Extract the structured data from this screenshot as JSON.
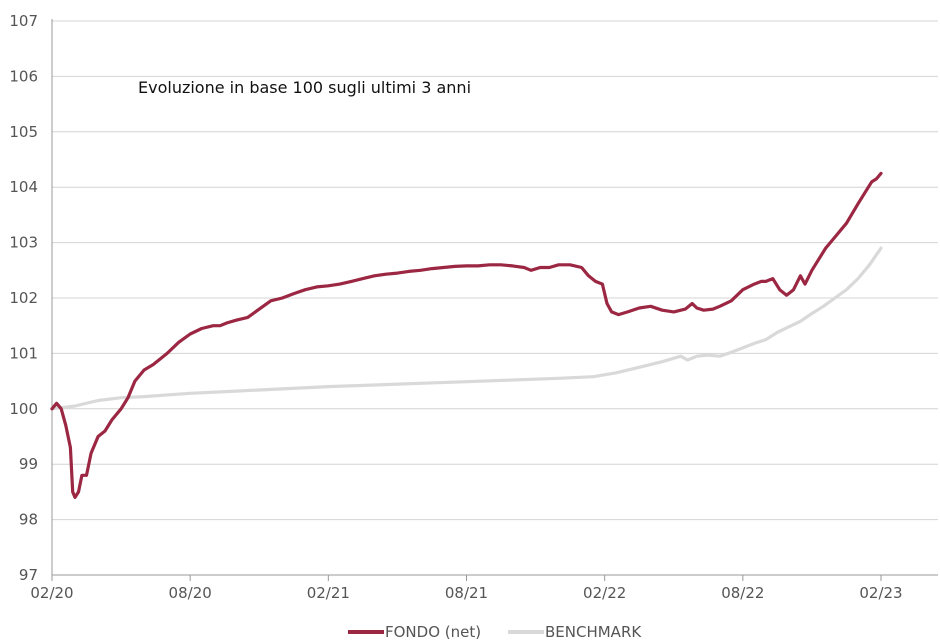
{
  "chart_data": {
    "type": "line",
    "title": "",
    "annotation": "Evoluzione in base 100 sugli ultimi 3 anni",
    "xlabel": "",
    "ylabel": "",
    "ylim": [
      97,
      107
    ],
    "yticks": [
      97,
      98,
      99,
      100,
      101,
      102,
      103,
      104,
      105,
      106,
      107
    ],
    "xlim": [
      0,
      36
    ],
    "xticks": [
      {
        "x": 0,
        "label": "02/20"
      },
      {
        "x": 6,
        "label": "08/20"
      },
      {
        "x": 12,
        "label": "02/21"
      },
      {
        "x": 18,
        "label": "08/21"
      },
      {
        "x": 24,
        "label": "02/22"
      },
      {
        "x": 30,
        "label": "08/22"
      },
      {
        "x": 36,
        "label": "02/23"
      }
    ],
    "grid": "horizontal",
    "legend": "bottom-center",
    "series": [
      {
        "name": "FONDO (net)",
        "color": "#9b2743",
        "points": [
          [
            0,
            100.0
          ],
          [
            0.2,
            100.1
          ],
          [
            0.4,
            100.0
          ],
          [
            0.6,
            99.7
          ],
          [
            0.8,
            99.3
          ],
          [
            0.9,
            98.5
          ],
          [
            1.0,
            98.4
          ],
          [
            1.15,
            98.5
          ],
          [
            1.3,
            98.8
          ],
          [
            1.5,
            98.8
          ],
          [
            1.7,
            99.2
          ],
          [
            2.0,
            99.5
          ],
          [
            2.3,
            99.6
          ],
          [
            2.6,
            99.8
          ],
          [
            3.0,
            100.0
          ],
          [
            3.3,
            100.2
          ],
          [
            3.6,
            100.5
          ],
          [
            4.0,
            100.7
          ],
          [
            4.4,
            100.8
          ],
          [
            5.0,
            101.0
          ],
          [
            5.5,
            101.2
          ],
          [
            6.0,
            101.35
          ],
          [
            6.5,
            101.45
          ],
          [
            7.0,
            101.5
          ],
          [
            7.3,
            101.5
          ],
          [
            7.6,
            101.55
          ],
          [
            8.0,
            101.6
          ],
          [
            8.5,
            101.65
          ],
          [
            9.0,
            101.8
          ],
          [
            9.5,
            101.95
          ],
          [
            10.0,
            102.0
          ],
          [
            10.5,
            102.08
          ],
          [
            11.0,
            102.15
          ],
          [
            11.5,
            102.2
          ],
          [
            12.0,
            102.22
          ],
          [
            12.5,
            102.25
          ],
          [
            13.0,
            102.3
          ],
          [
            13.5,
            102.35
          ],
          [
            14.0,
            102.4
          ],
          [
            14.5,
            102.43
          ],
          [
            15.0,
            102.45
          ],
          [
            15.5,
            102.48
          ],
          [
            16.0,
            102.5
          ],
          [
            16.5,
            102.53
          ],
          [
            17.0,
            102.55
          ],
          [
            17.5,
            102.57
          ],
          [
            18.0,
            102.58
          ],
          [
            18.5,
            102.58
          ],
          [
            19.0,
            102.6
          ],
          [
            19.5,
            102.6
          ],
          [
            20.0,
            102.58
          ],
          [
            20.5,
            102.55
          ],
          [
            20.8,
            102.5
          ],
          [
            21.2,
            102.55
          ],
          [
            21.6,
            102.55
          ],
          [
            22.0,
            102.6
          ],
          [
            22.5,
            102.6
          ],
          [
            23.0,
            102.55
          ],
          [
            23.3,
            102.4
          ],
          [
            23.6,
            102.3
          ],
          [
            23.9,
            102.25
          ],
          [
            24.1,
            101.9
          ],
          [
            24.3,
            101.75
          ],
          [
            24.6,
            101.7
          ],
          [
            25.0,
            101.75
          ],
          [
            25.5,
            101.82
          ],
          [
            26.0,
            101.85
          ],
          [
            26.5,
            101.78
          ],
          [
            27.0,
            101.75
          ],
          [
            27.5,
            101.8
          ],
          [
            27.8,
            101.9
          ],
          [
            28.0,
            101.82
          ],
          [
            28.3,
            101.78
          ],
          [
            28.7,
            101.8
          ],
          [
            29.0,
            101.85
          ],
          [
            29.5,
            101.95
          ],
          [
            30.0,
            102.15
          ],
          [
            30.5,
            102.25
          ],
          [
            30.8,
            102.3
          ],
          [
            31.0,
            102.3
          ],
          [
            31.3,
            102.35
          ],
          [
            31.6,
            102.15
          ],
          [
            31.9,
            102.05
          ],
          [
            32.2,
            102.15
          ],
          [
            32.5,
            102.4
          ],
          [
            32.7,
            102.25
          ],
          [
            33.0,
            102.5
          ],
          [
            33.3,
            102.7
          ],
          [
            33.6,
            102.9
          ],
          [
            34.0,
            103.1
          ],
          [
            34.5,
            103.35
          ],
          [
            35.0,
            103.7
          ],
          [
            35.3,
            103.9
          ],
          [
            35.6,
            104.1
          ],
          [
            35.8,
            104.15
          ],
          [
            36.0,
            104.25
          ]
        ]
      },
      {
        "name": "BENCHMARK",
        "color": "#d9d9d9",
        "points": [
          [
            0,
            100.0
          ],
          [
            1.0,
            100.05
          ],
          [
            2.0,
            100.15
          ],
          [
            3.0,
            100.2
          ],
          [
            4.0,
            100.22
          ],
          [
            6.0,
            100.28
          ],
          [
            8.0,
            100.32
          ],
          [
            10.0,
            100.36
          ],
          [
            12.0,
            100.4
          ],
          [
            14.0,
            100.43
          ],
          [
            16.0,
            100.46
          ],
          [
            18.0,
            100.49
          ],
          [
            20.0,
            100.52
          ],
          [
            22.0,
            100.55
          ],
          [
            23.5,
            100.58
          ],
          [
            24.5,
            100.65
          ],
          [
            25.5,
            100.75
          ],
          [
            26.5,
            100.85
          ],
          [
            27.3,
            100.95
          ],
          [
            27.6,
            100.88
          ],
          [
            28.0,
            100.95
          ],
          [
            28.5,
            100.97
          ],
          [
            29.0,
            100.95
          ],
          [
            29.5,
            101.02
          ],
          [
            30.0,
            101.1
          ],
          [
            30.5,
            101.18
          ],
          [
            31.0,
            101.25
          ],
          [
            31.5,
            101.38
          ],
          [
            32.0,
            101.48
          ],
          [
            32.5,
            101.58
          ],
          [
            33.0,
            101.72
          ],
          [
            33.5,
            101.85
          ],
          [
            34.0,
            102.0
          ],
          [
            34.5,
            102.15
          ],
          [
            35.0,
            102.35
          ],
          [
            35.5,
            102.6
          ],
          [
            36.0,
            102.9
          ]
        ]
      }
    ]
  }
}
